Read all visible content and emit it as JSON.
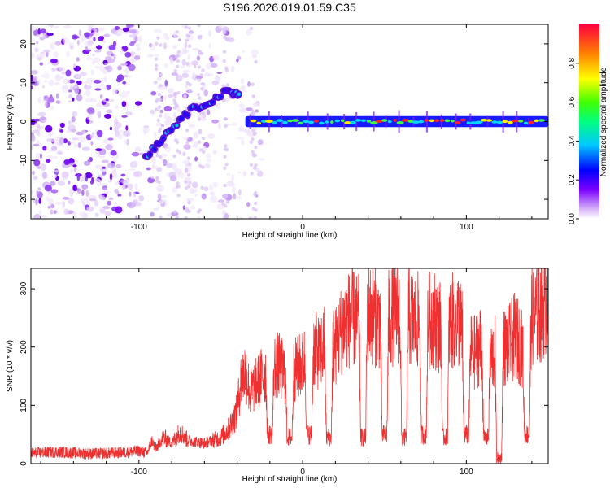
{
  "title": "S196.2026.019.01.59.C35",
  "chart_data": [
    {
      "type": "heatmap",
      "name": "spectrogram",
      "xlabel": "Height of straight line (km)",
      "ylabel": "Frequency (Hz)",
      "xlim": [
        -166,
        150
      ],
      "ylim": [
        -25,
        25
      ],
      "xticks": [
        -100,
        0,
        100
      ],
      "yticks": [
        -20,
        -10,
        0,
        10,
        20
      ],
      "colorbar": {
        "label": "Normalized spectral amplitude",
        "range": [
          0,
          1
        ],
        "ticks": [
          "0.0",
          "0.2",
          "0.4",
          "0.6",
          "0.8"
        ],
        "tick_values": [
          0.0,
          0.2,
          0.4,
          0.6,
          0.8
        ]
      },
      "signal_track": {
        "description": "strong narrow signal",
        "ramp_points": [
          [
            -96,
            -9
          ],
          [
            -85,
            -4
          ],
          [
            -72,
            2
          ],
          [
            -58,
            5
          ],
          [
            -45,
            8
          ],
          [
            -38,
            7
          ]
        ],
        "steady_band_hz": [
          -1,
          1
        ],
        "steady_start_km": -35
      }
    },
    {
      "type": "line",
      "name": "snr",
      "xlabel": "Height of straight line (km)",
      "ylabel": "SNR (10 * v/v)",
      "xlim": [
        -166,
        150
      ],
      "ylim": [
        0,
        335
      ],
      "xticks": [
        -100,
        0,
        100
      ],
      "yticks": [
        0,
        100,
        200,
        300
      ],
      "color": "#ee3030",
      "series": [
        {
          "name": "SNR",
          "x": [
            -166,
            -150,
            -130,
            -110,
            -100,
            -95,
            -92,
            -90,
            -85,
            -80,
            -75,
            -70,
            -60,
            -50,
            -45,
            -40,
            -38,
            -35,
            -32,
            -30,
            -25,
            -20,
            -15,
            -10,
            -5,
            0,
            5,
            10,
            15,
            20,
            25,
            30,
            35,
            40,
            45,
            50,
            55,
            60,
            65,
            70,
            75,
            80,
            85,
            90,
            95,
            100,
            105,
            110,
            115,
            120,
            125,
            130,
            135,
            140,
            145,
            150
          ],
          "values": [
            18,
            20,
            17,
            19,
            22,
            18,
            40,
            25,
            45,
            35,
            55,
            40,
            35,
            45,
            60,
            90,
            140,
            160,
            120,
            130,
            150,
            160,
            170,
            150,
            160,
            170,
            200,
            190,
            210,
            200,
            240,
            250,
            240,
            260,
            250,
            240,
            255,
            260,
            250,
            245,
            240,
            250,
            230,
            240,
            250,
            200,
            190,
            210,
            180,
            200,
            200,
            220,
            190,
            250,
            260,
            290
          ]
        }
      ],
      "dips": [
        {
          "x": -20,
          "value": 50
        },
        {
          "x": -8,
          "value": 45
        },
        {
          "x": 4,
          "value": 50
        },
        {
          "x": 16,
          "value": 45
        },
        {
          "x": 37,
          "value": 45
        },
        {
          "x": 50,
          "value": 50
        },
        {
          "x": 62,
          "value": 45
        },
        {
          "x": 74,
          "value": 50
        },
        {
          "x": 87,
          "value": 45
        },
        {
          "x": 100,
          "value": 50
        },
        {
          "x": 112,
          "value": 45
        },
        {
          "x": 120,
          "value": 10
        },
        {
          "x": 137,
          "value": 50
        }
      ]
    }
  ]
}
